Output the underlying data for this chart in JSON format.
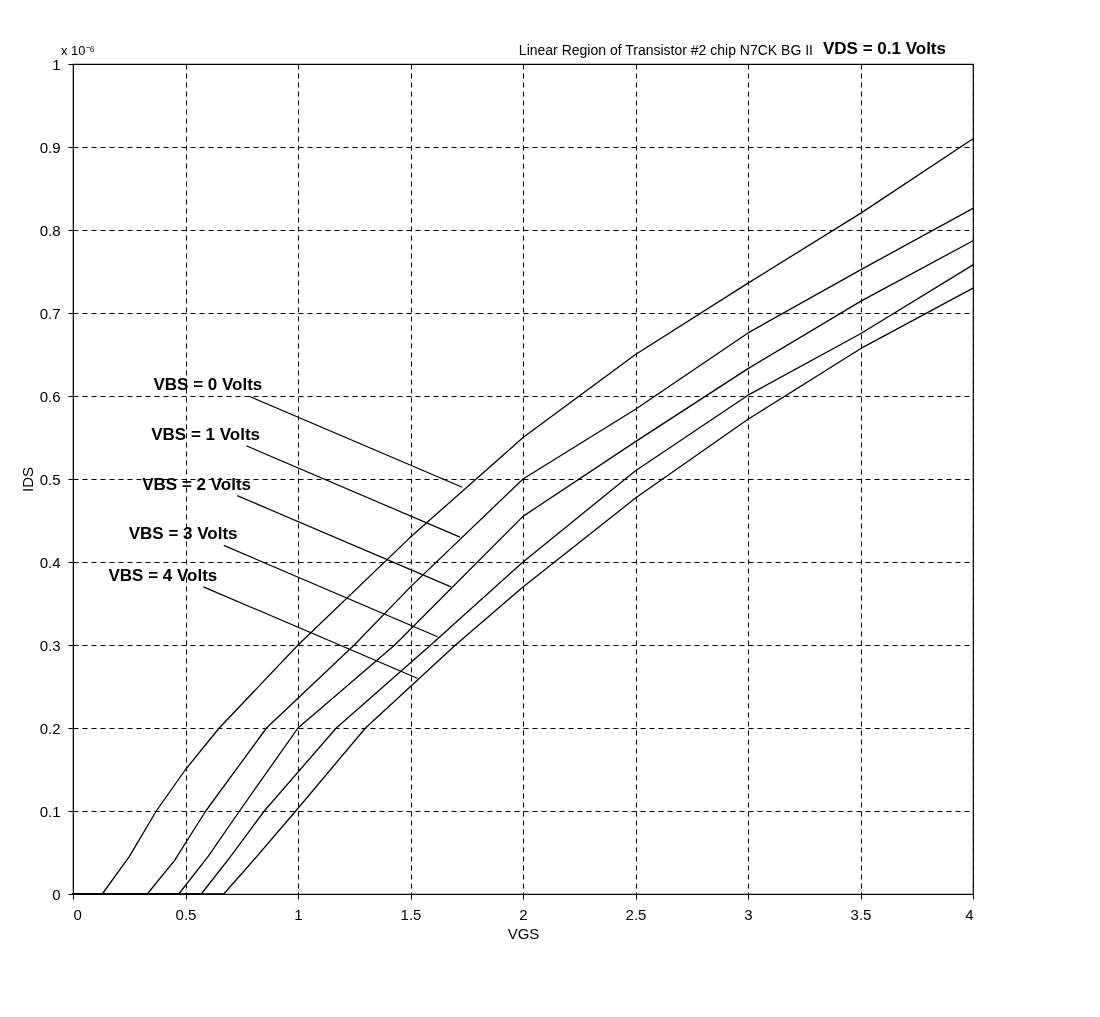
{
  "chart_data": {
    "type": "line",
    "title": "Linear Region of Transistor #2 chip N7CK BG II",
    "xlabel": "VGS",
    "ylabel": "IDS",
    "xlim": [
      0,
      4
    ],
    "xticks": [
      0,
      0.5,
      1,
      1.5,
      2,
      2.5,
      3,
      3.5,
      4
    ],
    "ylim": [
      0,
      1
    ],
    "yticks": [
      0,
      0.1,
      0.2,
      0.3,
      0.4,
      0.5,
      0.6,
      0.7,
      0.8,
      0.9,
      1
    ],
    "grid": true,
    "legend": false,
    "series": [
      {
        "color": "#000000",
        "x": [
          0,
          0.13,
          0.25,
          0.37,
          0.5,
          0.65,
          1.0,
          1.5,
          2,
          2.5,
          3,
          3.5,
          4
        ],
        "values": [
          0,
          0,
          0.045,
          0.1,
          0.15,
          0.2,
          0.3,
          0.43,
          0.55,
          0.65,
          0.736,
          0.82,
          0.91
        ]
      },
      {
        "color": "#000000",
        "x": [
          0,
          0.33,
          0.45,
          0.59,
          0.86,
          1.25,
          1.5,
          2,
          2.5,
          3,
          3.5,
          4
        ],
        "values": [
          0,
          0,
          0.04,
          0.1,
          0.2,
          0.3,
          0.37,
          0.5,
          0.584,
          0.676,
          0.752,
          0.826
        ]
      },
      {
        "color": "#000000",
        "x": [
          0,
          0.47,
          0.6,
          0.74,
          1.0,
          1.43,
          2,
          2.5,
          3,
          3.5,
          4
        ],
        "values": [
          0,
          0,
          0.045,
          0.1,
          0.2,
          0.3,
          0.455,
          0.545,
          0.633,
          0.714,
          0.787
        ]
      },
      {
        "color": "#000000",
        "x": [
          0,
          0.57,
          0.7,
          0.85,
          1.17,
          1.59,
          2,
          2.5,
          3,
          3.5,
          4
        ],
        "values": [
          0,
          0,
          0.045,
          0.1,
          0.2,
          0.3,
          0.4,
          0.51,
          0.601,
          0.675,
          0.758
        ]
      },
      {
        "color": "#000000",
        "x": [
          0,
          0.67,
          0.8,
          0.99,
          1.3,
          1.7,
          2,
          2.5,
          3,
          3.5,
          4
        ],
        "values": [
          0,
          0,
          0.04,
          0.1,
          0.2,
          0.3,
          0.37,
          0.477,
          0.572,
          0.657,
          0.73
        ]
      }
    ],
    "annotations": [
      {
        "text": "VBS = 0 Volts",
        "x": 1.73,
        "y": 0.49
      },
      {
        "text": "VBS = 1 Volts",
        "x": 1.72,
        "y": 0.43
      },
      {
        "text": "VBS = 2 Volts",
        "x": 1.68,
        "y": 0.37
      },
      {
        "text": "VBS = 3 Volts",
        "x": 1.62,
        "y": 0.31
      },
      {
        "text": "VBS = 4 Volts",
        "x": 1.53,
        "y": 0.26
      },
      "VDS = 0.1 Volts",
      "x 10⁻⁶"
    ]
  }
}
